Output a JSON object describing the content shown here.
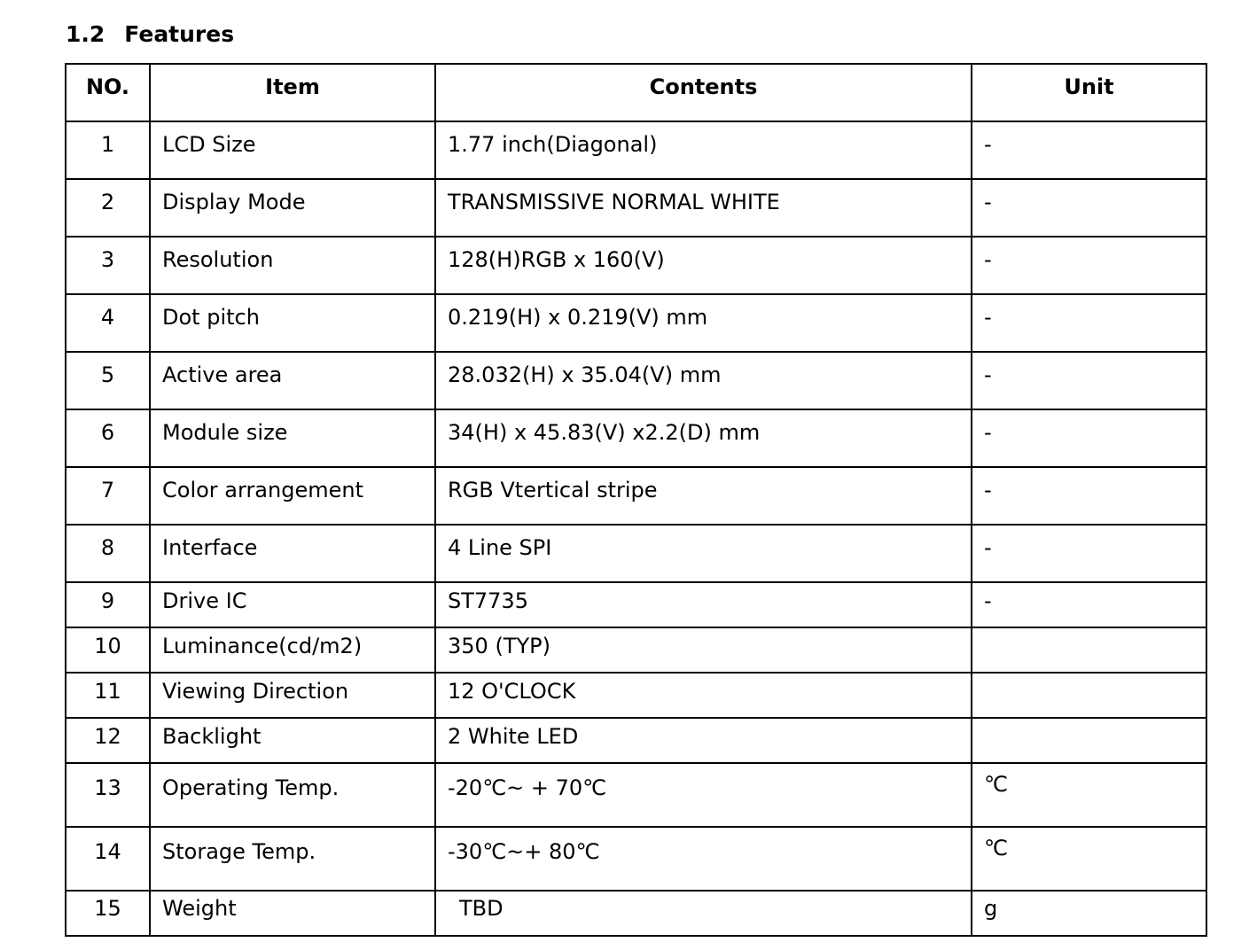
{
  "section": {
    "number": "1.2",
    "title": "Features"
  },
  "table": {
    "headers": [
      "NO.",
      "Item",
      "Contents",
      "Unit"
    ],
    "rows": [
      {
        "no": "1",
        "item": "LCD Size",
        "contents": "1.77 inch(Diagonal)",
        "unit": "-"
      },
      {
        "no": "2",
        "item": "Display Mode",
        "contents": "TRANSMISSIVE NORMAL WHITE",
        "unit": "-"
      },
      {
        "no": "3",
        "item": "Resolution",
        "contents": "128(H)RGB x 160(V)",
        "unit": "-"
      },
      {
        "no": "4",
        "item": "Dot pitch",
        "contents": "0.219(H) x 0.219(V) mm",
        "unit": "-"
      },
      {
        "no": "5",
        "item": "Active area",
        "contents": "28.032(H) x 35.04(V) mm",
        "unit": "-"
      },
      {
        "no": "6",
        "item": "Module size",
        "contents": "34(H) x 45.83(V) x2.2(D) mm",
        "unit": "-"
      },
      {
        "no": "7",
        "item": "Color arrangement",
        "contents": "RGB Vtertical stripe",
        "unit": "-"
      },
      {
        "no": "8",
        "item": "Interface",
        "contents": "4 Line SPI",
        "unit": "-"
      },
      {
        "no": "9",
        "item": "Drive IC",
        "contents": "ST7735",
        "unit": "-"
      },
      {
        "no": "10",
        "item": "Luminance(cd/m2)",
        "contents": "350 (TYP)",
        "unit": ""
      },
      {
        "no": "11",
        "item": "Viewing Direction",
        "contents": "12 O'CLOCK",
        "unit": ""
      },
      {
        "no": "12",
        "item": "Backlight",
        "contents": "2 White LED",
        "unit": ""
      },
      {
        "no": "13",
        "item": "Operating Temp.",
        "contents": "-20℃~ + 70℃",
        "unit": "℃"
      },
      {
        "no": "14",
        "item": "Storage Temp.",
        "contents": "-30℃~+ 80℃",
        "unit": "℃"
      },
      {
        "no": "15",
        "item": "Weight",
        "contents": "TBD",
        "unit": "g"
      }
    ]
  }
}
